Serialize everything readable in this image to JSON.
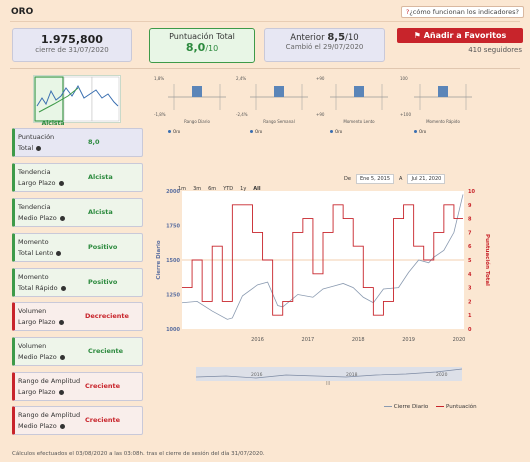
{
  "page": {
    "title": "ORO",
    "help_link": "¿cómo funcionan los indicadores?",
    "help_mark": "?"
  },
  "price": {
    "value": "1.975,800",
    "label": "cierre de 31/07/2020"
  },
  "score": {
    "label": "Puntuación Total",
    "value": "8,0",
    "denominator": "/10"
  },
  "previous": {
    "label": "Anterior",
    "value": "8,5",
    "denominator": "/10",
    "note": "Cambió el 29/07/2020"
  },
  "favorite": {
    "label": "Añadir a Favoritos",
    "followers": "410 seguidores"
  },
  "gauge": {
    "label": "Alcista"
  },
  "indicators": [
    {
      "line1": "Puntuación",
      "line2": "Total",
      "value": "8,0",
      "kind": "first"
    },
    {
      "line1": "Tendencia",
      "line2": "Largo Plazo",
      "value": "Alcista",
      "kind": "green"
    },
    {
      "line1": "Tendencia",
      "line2": "Medio Plazo",
      "value": "Alcista",
      "kind": "green"
    },
    {
      "line1": "Momento",
      "line2": "Total Lento",
      "value": "Positivo",
      "kind": "green"
    },
    {
      "line1": "Momento",
      "line2": "Total Rápido",
      "value": "Positivo",
      "kind": "green"
    },
    {
      "line1": "Volumen",
      "line2": "Largo Plazo",
      "value": "Decreciente",
      "kind": "red"
    },
    {
      "line1": "Volumen",
      "line2": "Medio Plazo",
      "value": "Creciente",
      "kind": "green"
    },
    {
      "line1": "Rango de Amplitud",
      "line2": "Largo Plazo",
      "value": "Creciente",
      "kind": "red"
    },
    {
      "line1": "Rango de Amplitud",
      "line2": "Medio Plazo",
      "value": "Creciente",
      "kind": "red"
    }
  ],
  "mini_charts": [
    {
      "title": "Rango Diario",
      "top": "1,8%",
      "bottom": "-1,8%",
      "legend": "Oro"
    },
    {
      "title": "Rango Semanal",
      "top": "2,4%",
      "bottom": "-2,4%",
      "legend": "Oro"
    },
    {
      "title": "Momento Lento",
      "top": "+90",
      "bottom": "+90",
      "legend": "Oro"
    },
    {
      "title": "Momento Rápido",
      "top": "100",
      "bottom": "+100",
      "legend": "Oro"
    }
  ],
  "range_buttons": [
    "1m",
    "3m",
    "6m",
    "YTD",
    "1y",
    "All"
  ],
  "date_range": {
    "from_label": "De",
    "from": "Ene 5, 2015",
    "to_label": "A",
    "to": "Jul 21, 2020"
  },
  "chart_data": {
    "type": "line",
    "xlabel": "",
    "ylabel": "Cierre Diario",
    "y2label": "Puntuación Total",
    "x_ticks": [
      "2016",
      "2017",
      "2018",
      "2019",
      "2020"
    ],
    "ylim": [
      1000,
      2000
    ],
    "y_ticks": [
      1000,
      1250,
      1500,
      1750,
      2000
    ],
    "y2lim": [
      0,
      10
    ],
    "y2_ticks": [
      0,
      1,
      2,
      3,
      4,
      5,
      6,
      7,
      8,
      9,
      10
    ],
    "navigator_ticks": [
      "2016",
      "2018",
      "2020"
    ],
    "navigator_mark": "|||",
    "series": [
      {
        "name": "Cierre Diario",
        "x": [
          2015.0,
          2015.3,
          2015.6,
          2015.9,
          2016.0,
          2016.2,
          2016.5,
          2016.7,
          2016.9,
          2017.0,
          2017.3,
          2017.6,
          2017.8,
          2018.0,
          2018.2,
          2018.4,
          2018.6,
          2018.8,
          2019.0,
          2019.3,
          2019.5,
          2019.7,
          2019.9,
          2020.0,
          2020.2,
          2020.4,
          2020.58
        ],
        "values": [
          1190,
          1200,
          1130,
          1070,
          1080,
          1240,
          1320,
          1340,
          1170,
          1160,
          1250,
          1230,
          1290,
          1310,
          1330,
          1300,
          1230,
          1190,
          1290,
          1300,
          1410,
          1500,
          1480,
          1520,
          1570,
          1700,
          1975
        ]
      },
      {
        "name": "Puntuación",
        "x": [
          2015.0,
          2015.2,
          2015.4,
          2015.6,
          2015.8,
          2016.0,
          2016.2,
          2016.4,
          2016.6,
          2016.8,
          2017.0,
          2017.2,
          2017.4,
          2017.6,
          2017.8,
          2018.0,
          2018.2,
          2018.4,
          2018.6,
          2018.8,
          2019.0,
          2019.2,
          2019.4,
          2019.6,
          2019.8,
          2020.0,
          2020.2,
          2020.4,
          2020.58
        ],
        "values": [
          3,
          5,
          2,
          6,
          2,
          9,
          9,
          7,
          5,
          1,
          2,
          7,
          8,
          4,
          7,
          9,
          8,
          6,
          3,
          1,
          2,
          8,
          9,
          6,
          5,
          7,
          9,
          8,
          8
        ]
      }
    ]
  },
  "legend": {
    "series1": "Cierre Diario",
    "series2": "Puntuación"
  },
  "footer": "Cálculos efectuados el 03/08/2020 a las 03:08h. tras el cierre de sesión del día 31/07/2020."
}
